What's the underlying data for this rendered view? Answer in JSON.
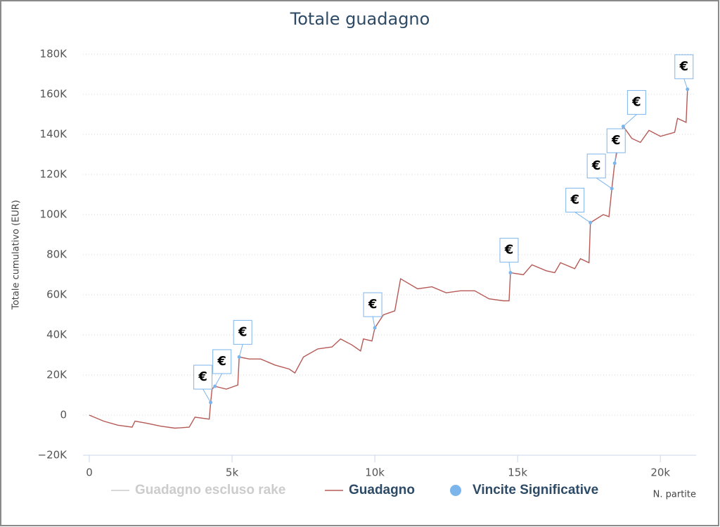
{
  "chart_data": {
    "type": "line",
    "title": "Totale guadagno",
    "y_label": "Totale cumulativo (EUR)",
    "x_label": "N. partite",
    "xlim": [
      0,
      21300
    ],
    "ylim": [
      -20000,
      180000
    ],
    "xticks": [
      0,
      {
        "value": 5000,
        "label": "5k"
      },
      {
        "value": 10000,
        "label": "10k"
      },
      {
        "value": 15000,
        "label": "15k"
      },
      {
        "value": 20000,
        "label": "20k"
      }
    ],
    "yticks": [
      {
        "value": -20000,
        "label": "−20K"
      },
      0,
      {
        "value": 20000,
        "label": "20K"
      },
      {
        "value": 40000,
        "label": "40K"
      },
      {
        "value": 60000,
        "label": "60K"
      },
      {
        "value": 80000,
        "label": "80K"
      },
      {
        "value": 100000,
        "label": "100K"
      },
      {
        "value": 120000,
        "label": "120K"
      },
      {
        "value": 140000,
        "label": "140K"
      },
      {
        "value": 160000,
        "label": "160K"
      },
      {
        "value": 180000,
        "label": "180K"
      }
    ],
    "grid": true,
    "series": [
      {
        "name": "Guadagno escluso rake",
        "color": "#cccccc",
        "visible": false
      },
      {
        "name": "Guadagno",
        "color": "#b55a56",
        "visible": true,
        "x": [
          0,
          500,
          1000,
          1500,
          1600,
          2000,
          2500,
          3000,
          3500,
          3700,
          4200,
          4250,
          4300,
          4400,
          4800,
          5200,
          5250,
          5600,
          6000,
          6500,
          7000,
          7200,
          7500,
          8000,
          8500,
          8800,
          9200,
          9500,
          9600,
          9900,
          10000,
          10300,
          10700,
          10900,
          11500,
          12000,
          12500,
          13000,
          13500,
          14000,
          14500,
          14700,
          14750,
          15200,
          15500,
          16000,
          16300,
          16500,
          17000,
          17200,
          17500,
          17550,
          18000,
          18200,
          18300,
          18400,
          18600,
          18700,
          19000,
          19300,
          19600,
          20000,
          20500,
          20600,
          20900,
          20950
        ],
        "values": [
          0,
          -3000,
          -5000,
          -6000,
          -3000,
          -4000,
          -5500,
          -6500,
          -6000,
          -1000,
          -2000,
          6300,
          13000,
          14400,
          13000,
          15000,
          29000,
          28000,
          28000,
          25000,
          23000,
          21000,
          29000,
          33000,
          34000,
          38000,
          35000,
          32000,
          38000,
          37000,
          43500,
          50000,
          52000,
          68000,
          63000,
          64000,
          61000,
          62000,
          62000,
          58000,
          57000,
          57000,
          71000,
          70000,
          75000,
          72000,
          71000,
          76000,
          73000,
          78000,
          76000,
          96000,
          100000,
          99000,
          113000,
          125600,
          140000,
          144000,
          138000,
          136000,
          142000,
          139000,
          141000,
          148000,
          146000,
          162500
        ]
      },
      {
        "name": "Vincite Significative",
        "type": "scatter",
        "color": "#7cb5ec",
        "visible": true,
        "x": [
          4250,
          4400,
          5250,
          10000,
          14750,
          17550,
          18300,
          18400,
          18700,
          20950
        ],
        "values": [
          6300,
          14400,
          29000,
          43500,
          71000,
          96000,
          113000,
          125600,
          144000,
          162500
        ],
        "labels": [
          "€",
          "€",
          "€",
          "€",
          "€",
          "€",
          "€",
          "€",
          "€",
          "€"
        ]
      }
    ]
  }
}
